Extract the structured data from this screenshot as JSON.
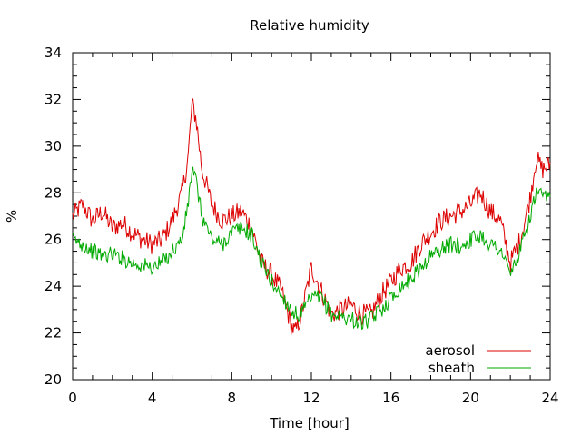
{
  "chart_data": {
    "type": "line",
    "title": "Relative humidity",
    "xlabel": "Time [hour]",
    "ylabel": "%",
    "xlim": [
      0,
      24
    ],
    "ylim": [
      20,
      34
    ],
    "xticks": [
      0,
      4,
      8,
      12,
      16,
      20,
      24
    ],
    "yticks": [
      20,
      22,
      24,
      26,
      28,
      30,
      32,
      34
    ],
    "xtick_labels": [
      "0",
      "4",
      "8",
      "12",
      "16",
      "20",
      "24"
    ],
    "ytick_labels": [
      "20",
      "22",
      "24",
      "26",
      "28",
      "30",
      "32",
      "34"
    ],
    "grid": false,
    "legend": "bottom-right",
    "series": [
      {
        "name": "aerosol",
        "color": "#dd0000",
        "x": [
          0,
          0.5,
          1,
          1.5,
          2,
          2.5,
          3,
          3.5,
          4,
          4.5,
          5,
          5.5,
          5.8,
          6,
          6.2,
          6.5,
          7,
          7.5,
          8,
          8.5,
          9,
          9.5,
          10,
          10.5,
          11,
          11.2,
          11.5,
          12,
          12.5,
          13,
          13.5,
          14,
          14.5,
          15,
          15.5,
          16,
          16.5,
          17,
          17.5,
          18,
          18.5,
          19,
          19.5,
          20,
          20.5,
          21,
          21.5,
          22,
          22.5,
          23,
          23.3,
          23.6,
          24
        ],
        "y": [
          27.0,
          27.5,
          26.8,
          27.2,
          26.5,
          26.7,
          26.3,
          26.0,
          25.8,
          26.0,
          26.8,
          28.0,
          29.5,
          31.8,
          31.2,
          29.0,
          27.5,
          26.8,
          27.0,
          27.2,
          26.5,
          25.0,
          24.5,
          23.8,
          22.3,
          22.0,
          22.8,
          24.8,
          23.8,
          22.8,
          23.0,
          23.2,
          22.8,
          22.8,
          23.6,
          24.2,
          24.8,
          25.0,
          25.8,
          26.3,
          26.8,
          27.0,
          27.2,
          27.5,
          28.0,
          27.2,
          26.8,
          25.0,
          26.0,
          27.8,
          29.5,
          29.0,
          29.2
        ]
      },
      {
        "name": "sheath",
        "color": "#00aa00",
        "x": [
          0,
          0.5,
          1,
          1.5,
          2,
          2.5,
          3,
          3.5,
          4,
          4.5,
          5,
          5.5,
          5.8,
          6,
          6.2,
          6.5,
          7,
          7.5,
          8,
          8.5,
          9,
          9.5,
          10,
          10.5,
          11,
          11.2,
          11.5,
          12,
          12.5,
          13,
          13.5,
          14,
          14.5,
          15,
          15.5,
          16,
          16.5,
          17,
          17.5,
          18,
          18.5,
          19,
          19.5,
          20,
          20.5,
          21,
          21.5,
          22,
          22.5,
          23,
          23.3,
          23.6,
          24
        ],
        "y": [
          26.0,
          25.8,
          25.5,
          25.3,
          25.4,
          25.2,
          25.0,
          24.9,
          24.8,
          25.0,
          25.5,
          26.0,
          27.5,
          29.0,
          28.5,
          27.0,
          26.0,
          25.8,
          26.3,
          26.5,
          26.2,
          25.0,
          24.2,
          23.6,
          23.0,
          22.8,
          22.8,
          23.5,
          23.5,
          22.8,
          22.7,
          22.6,
          22.4,
          22.6,
          23.0,
          23.5,
          24.0,
          24.3,
          24.8,
          25.3,
          25.6,
          25.8,
          25.7,
          26.0,
          26.2,
          25.8,
          25.6,
          24.5,
          25.5,
          27.0,
          28.0,
          27.8,
          27.8
        ]
      }
    ]
  }
}
